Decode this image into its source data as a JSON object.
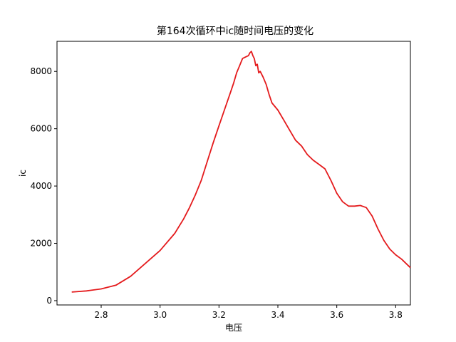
{
  "chart_data": {
    "type": "line",
    "title": "第164次循环中ic随时间电压的变化",
    "xlabel": "电压",
    "ylabel": "ic",
    "xlim": [
      2.65,
      3.85
    ],
    "ylim": [
      -150,
      9050
    ],
    "xticks": [
      2.8,
      3.0,
      3.2,
      3.4,
      3.6,
      3.8
    ],
    "xtick_labels": [
      "2.8",
      "3.0",
      "3.2",
      "3.4",
      "3.6",
      "3.8"
    ],
    "yticks": [
      0,
      2000,
      4000,
      6000,
      8000
    ],
    "ytick_labels": [
      "0",
      "2000",
      "4000",
      "6000",
      "8000"
    ],
    "grid": false,
    "legend": "none",
    "series": [
      {
        "color": "#e41a1c",
        "x": [
          2.7,
          2.75,
          2.8,
          2.85,
          2.9,
          2.95,
          3.0,
          3.05,
          3.08,
          3.1,
          3.12,
          3.14,
          3.16,
          3.18,
          3.2,
          3.22,
          3.24,
          3.25,
          3.26,
          3.27,
          3.28,
          3.29,
          3.3,
          3.305,
          3.31,
          3.315,
          3.32,
          3.325,
          3.33,
          3.335,
          3.34,
          3.35,
          3.36,
          3.37,
          3.38,
          3.4,
          3.42,
          3.44,
          3.46,
          3.48,
          3.5,
          3.52,
          3.54,
          3.56,
          3.58,
          3.6,
          3.62,
          3.64,
          3.66,
          3.68,
          3.7,
          3.72,
          3.74,
          3.76,
          3.78,
          3.8,
          3.82,
          3.85
        ],
        "y": [
          300,
          340,
          410,
          540,
          850,
          1300,
          1750,
          2350,
          2850,
          3250,
          3700,
          4200,
          4850,
          5500,
          6100,
          6700,
          7300,
          7600,
          7950,
          8200,
          8450,
          8500,
          8550,
          8650,
          8700,
          8550,
          8450,
          8200,
          8250,
          7950,
          8000,
          7800,
          7550,
          7200,
          6900,
          6650,
          6300,
          5950,
          5600,
          5400,
          5100,
          4900,
          4750,
          4600,
          4200,
          3750,
          3450,
          3300,
          3300,
          3320,
          3250,
          2950,
          2500,
          2100,
          1800,
          1600,
          1450,
          1150
        ]
      }
    ]
  }
}
